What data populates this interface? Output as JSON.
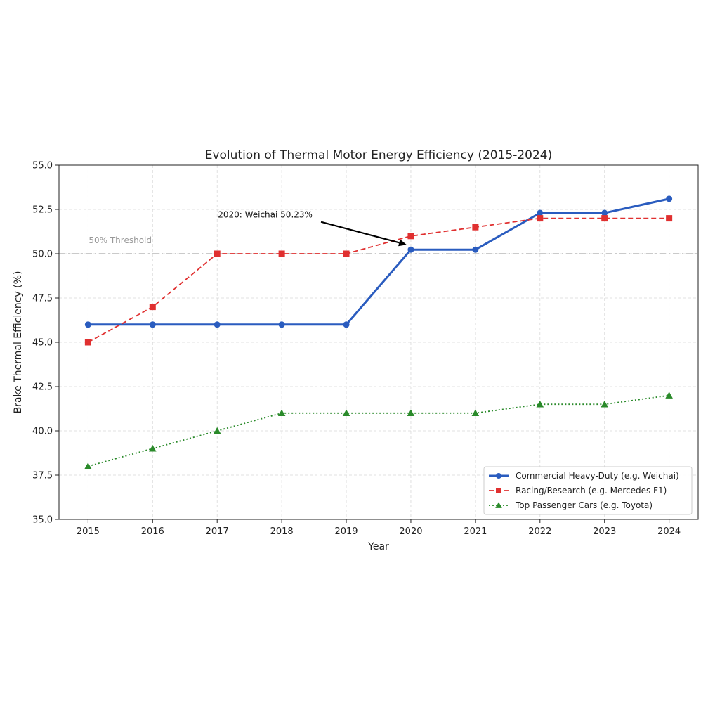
{
  "chart_data": {
    "type": "line",
    "title": "Evolution of Thermal Motor Energy Efficiency (2015-2024)",
    "xlabel": "Year",
    "ylabel": "Brake Thermal Efficiency (%)",
    "x": [
      2015,
      2016,
      2017,
      2018,
      2019,
      2020,
      2021,
      2022,
      2023,
      2024
    ],
    "x_tick_labels": [
      "2015",
      "2016",
      "2017",
      "2018",
      "2019",
      "2020",
      "2021",
      "2022",
      "2023",
      "2024"
    ],
    "ylim": [
      35.0,
      55.0
    ],
    "y_ticks": [
      35.0,
      37.5,
      40.0,
      42.5,
      45.0,
      47.5,
      50.0,
      52.5,
      55.0
    ],
    "y_tick_labels": [
      "35.0",
      "37.5",
      "40.0",
      "42.5",
      "45.0",
      "47.5",
      "50.0",
      "52.5",
      "55.0"
    ],
    "grid": true,
    "legend_position": "lower-right",
    "series": [
      {
        "name": "Commercial Heavy-Duty (e.g. Weichai)",
        "values": [
          46.0,
          46.0,
          46.0,
          46.0,
          46.0,
          50.23,
          50.23,
          52.3,
          52.3,
          53.1
        ],
        "color": "#2a5cbf",
        "marker": "circle",
        "line_style": "solid"
      },
      {
        "name": "Racing/Research (e.g. Mercedes F1)",
        "values": [
          45.0,
          47.0,
          50.0,
          50.0,
          50.0,
          51.0,
          51.5,
          52.0,
          52.0,
          52.0
        ],
        "color": "#e03030",
        "marker": "square",
        "line_style": "dashed"
      },
      {
        "name": "Top Passenger Cars (e.g. Toyota)",
        "values": [
          38.0,
          39.0,
          40.0,
          41.0,
          41.0,
          41.0,
          41.0,
          41.5,
          41.5,
          42.0
        ],
        "color": "#2a8a2a",
        "marker": "triangle",
        "line_style": "dotted"
      }
    ],
    "reference_line": {
      "y": 50.0,
      "label": "50% Threshold",
      "color": "#aaaaaa",
      "line_style": "dashdot"
    },
    "annotation": {
      "text": "2020: Weichai 50.23%",
      "target_x": 2020,
      "target_y": 50.23
    }
  }
}
